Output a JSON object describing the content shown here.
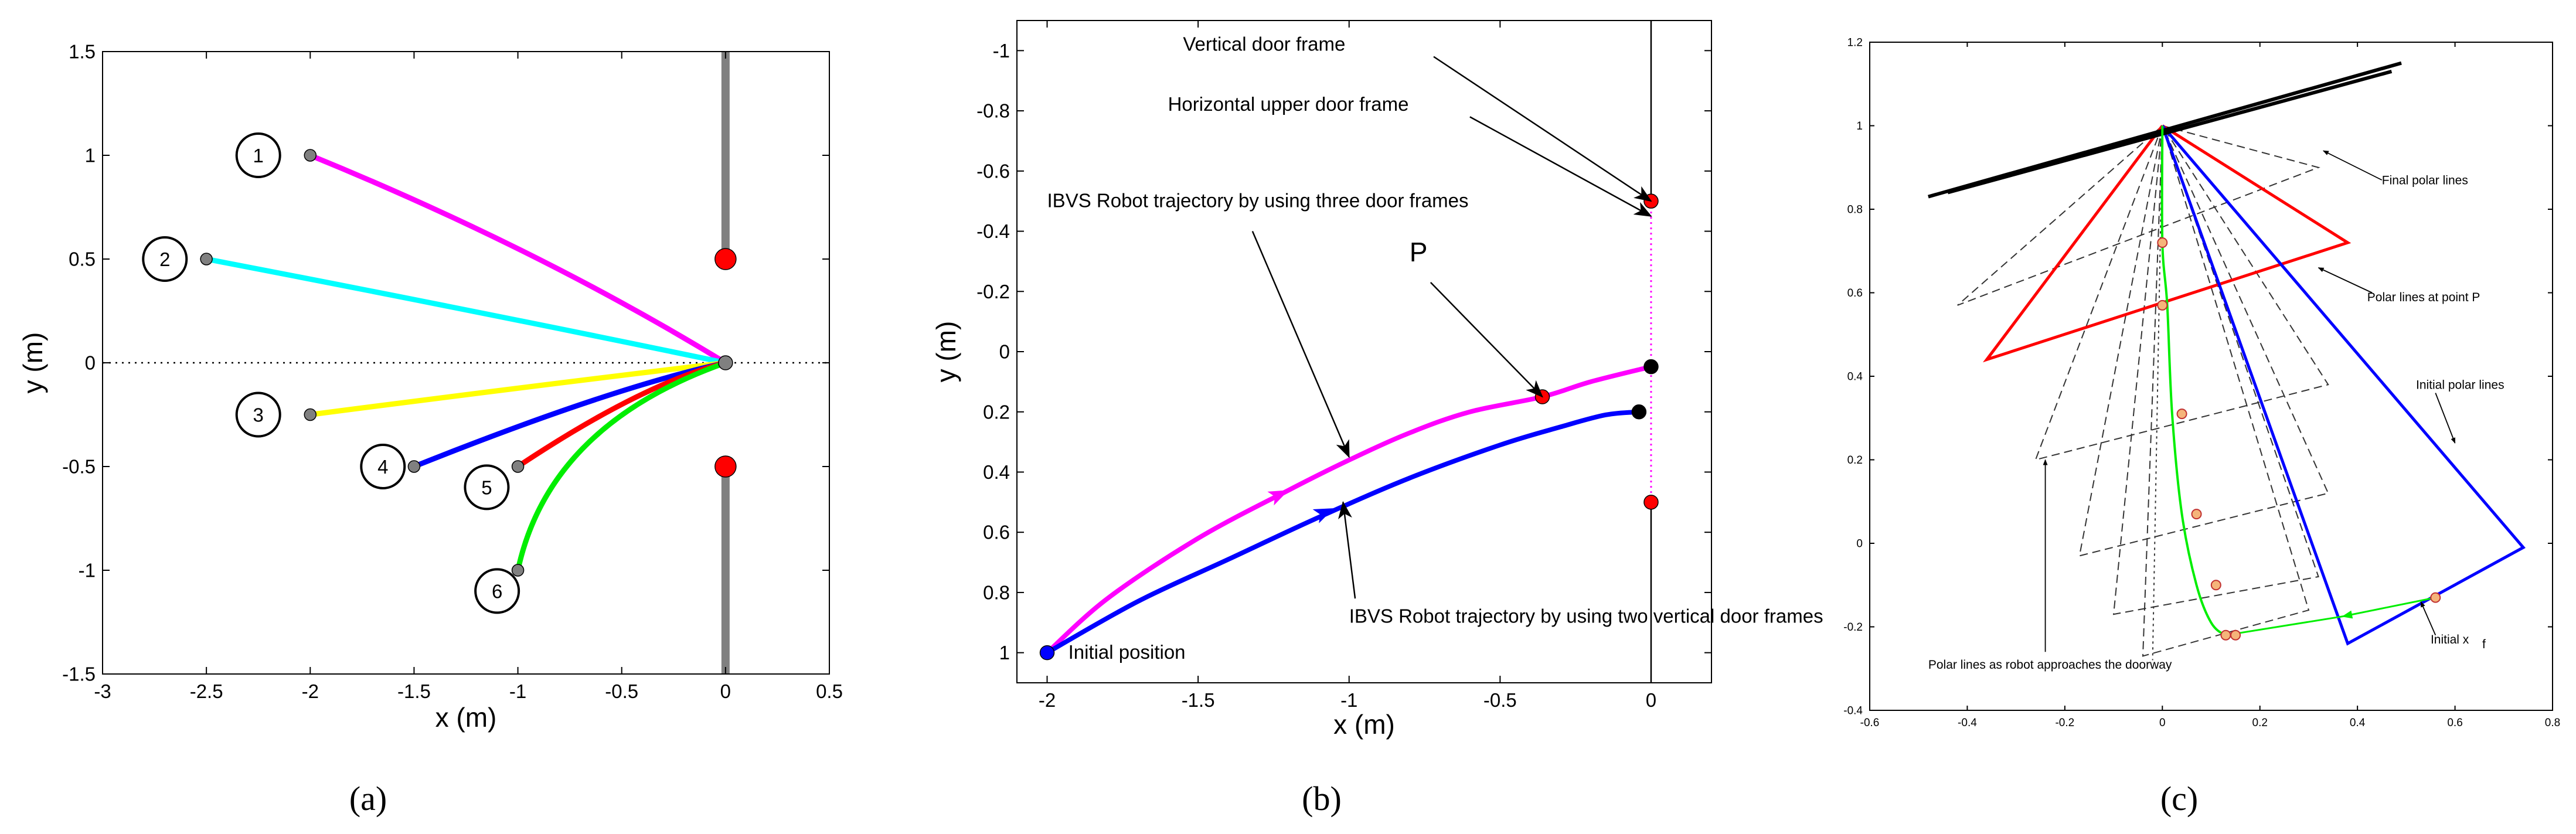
{
  "figure": {
    "panel_labels": [
      "(a)",
      "(b)",
      "(c)"
    ]
  },
  "chart_data": [
    {
      "panel": "a",
      "type": "line",
      "xlabel": "x (m)",
      "ylabel": "y (m)",
      "xlim": [
        -3,
        0.5
      ],
      "ylim": [
        -1.5,
        1.5
      ],
      "x_ticks": [
        -3,
        -2.5,
        -2,
        -1.5,
        -1,
        -0.5,
        0,
        0.5
      ],
      "y_ticks": [
        1.5,
        1,
        0.5,
        0,
        -0.5,
        -1,
        -1.5
      ],
      "x_tick_labels": [
        "-3",
        "-2.5",
        "-2",
        "-1.5",
        "-1",
        "-0.5",
        "0",
        "0.5"
      ],
      "y_tick_labels": [
        "1.5",
        "1",
        "0.5",
        "0",
        "-0.5",
        "-1",
        "-1.5"
      ],
      "grid": false,
      "series": [
        {
          "label": "1",
          "color": "#ff00ff",
          "start": [
            -2,
            1
          ],
          "end": [
            0,
            0
          ]
        },
        {
          "label": "2",
          "color": "#00ffff",
          "start": [
            -2.5,
            0.5
          ],
          "end": [
            0,
            0
          ]
        },
        {
          "label": "3",
          "color": "#ffff00",
          "start": [
            -2,
            -0.25
          ],
          "end": [
            0,
            0
          ]
        },
        {
          "label": "4",
          "color": "#0000ff",
          "start": [
            -1.5,
            -0.5
          ],
          "end": [
            0,
            0
          ]
        },
        {
          "label": "5",
          "color": "#ff0000",
          "start": [
            -1,
            -0.5
          ],
          "end": [
            0,
            0
          ]
        },
        {
          "label": "6",
          "color": "#00ee00",
          "start": [
            -1,
            -1
          ],
          "end": [
            0,
            0
          ]
        }
      ],
      "door_posts": [
        {
          "x": 0,
          "y_range": [
            0.5,
            1.5
          ]
        },
        {
          "x": 0,
          "y_range": [
            -1.5,
            -0.5
          ]
        }
      ],
      "door_points": [
        [
          0,
          0.5
        ],
        [
          0,
          -0.5
        ]
      ],
      "goal_point": [
        0,
        0
      ],
      "reference_line_y": 0,
      "colors": {
        "door_post": "#808080",
        "door_point": "#ff0000"
      }
    },
    {
      "panel": "b",
      "type": "line",
      "xlabel": "x (m)",
      "ylabel": "y (m)",
      "xlim": [
        -2.1,
        0.2
      ],
      "ylim": [
        1.1,
        -1.1
      ],
      "y_axis_inverted": true,
      "x_ticks": [
        -2,
        -1.5,
        -1,
        -0.5,
        0
      ],
      "x_tick_labels": [
        "-2",
        "-1.5",
        "-1",
        "-0.5",
        "0"
      ],
      "y_ticks": [
        -1,
        -0.8,
        -0.6,
        -0.4,
        -0.2,
        0,
        0.2,
        0.4,
        0.6,
        0.8,
        1
      ],
      "y_tick_labels": [
        "-1",
        "-0.8",
        "-0.6",
        "-0.4",
        "-0.2",
        "0",
        "0.2",
        "0.4",
        "0.6",
        "0.8",
        "1"
      ],
      "grid": false,
      "series": [
        {
          "color": "#ff00ff",
          "x": [
            -2,
            -1.8,
            -1.5,
            -1.2,
            -1.0,
            -0.8,
            -0.6,
            -0.36,
            -0.2,
            0
          ],
          "y": [
            1.0,
            0.82,
            0.62,
            0.46,
            0.36,
            0.27,
            0.2,
            0.15,
            0.1,
            0.05
          ]
        },
        {
          "color": "#0000ff",
          "x": [
            -2,
            -1.7,
            -1.4,
            -1.1,
            -0.8,
            -0.5,
            -0.3,
            -0.15,
            -0.04
          ],
          "y": [
            1.0,
            0.83,
            0.69,
            0.55,
            0.42,
            0.31,
            0.25,
            0.21,
            0.2
          ]
        }
      ],
      "points": [
        {
          "x": -2,
          "y": 1.0,
          "color": "#0000ff"
        },
        {
          "x": -0.36,
          "y": 0.15,
          "color": "#ff0000"
        },
        {
          "x": 0,
          "y": 0.05,
          "color": "#000000"
        },
        {
          "x": -0.04,
          "y": 0.2,
          "color": "#000000"
        },
        {
          "x": 0,
          "y": -0.5,
          "color": "#ff0000"
        },
        {
          "x": 0,
          "y": 0.5,
          "color": "#ff0000"
        }
      ],
      "door_line_x": 0,
      "annotations": [
        {
          "text": "Vertical door frame",
          "xy": [
            0,
            -0.5
          ],
          "xytext": [
            -1.55,
            -1.0
          ]
        },
        {
          "text": "Horizontal upper door frame",
          "xy": [
            0,
            -0.45
          ],
          "xytext": [
            -1.6,
            -0.8
          ]
        },
        {
          "text": "IBVS Robot trajectory by using three door frames",
          "xy": [
            -1.0,
            0.35
          ],
          "xytext": [
            -2.0,
            -0.48
          ]
        },
        {
          "text": "P",
          "xy": [
            -0.36,
            0.15
          ],
          "xytext": [
            -0.8,
            -0.3
          ]
        },
        {
          "text": "IBVS Robot trajectory by using two vertical door frames",
          "xy": [
            -1.02,
            0.5
          ],
          "xytext": [
            -1.0,
            0.9
          ]
        },
        {
          "text": "Initial position",
          "xy": [
            -2.0,
            1.0
          ],
          "xytext": [
            -1.93,
            1.02
          ]
        }
      ]
    },
    {
      "panel": "c",
      "type": "line",
      "xlabel": "",
      "ylabel": "",
      "xlim": [
        -0.6,
        0.8
      ],
      "ylim": [
        -0.4,
        1.2
      ],
      "x_ticks": [
        -0.6,
        -0.4,
        -0.2,
        0,
        0.2,
        0.4,
        0.6,
        0.8
      ],
      "x_tick_labels": [
        "-0.6",
        "-0.4",
        "-0.2",
        "0",
        "0.2",
        "0.4",
        "0.6",
        "0.8"
      ],
      "y_ticks": [
        1.2,
        1,
        0.8,
        0.6,
        0.4,
        0.2,
        0,
        -0.2,
        -0.4
      ],
      "y_tick_labels": [
        "1.2",
        "1",
        "0.8",
        "0.6",
        "0.4",
        "0.2",
        "0",
        "-0.2",
        "-0.4"
      ],
      "grid": false,
      "final_polar_lines": [
        [
          [
            -0.48,
            0.83
          ],
          [
            0.49,
            1.15
          ]
        ],
        [
          [
            -0.44,
            0.84
          ],
          [
            0.47,
            1.13
          ]
        ]
      ],
      "polar_lines_at_P": [
        [
          0.0,
          1.0
        ],
        [
          -0.36,
          0.44
        ],
        [
          0.38,
          0.72
        ],
        [
          0.0,
          1.0
        ]
      ],
      "initial_polar_lines": [
        [
          0.0,
          1.0
        ],
        [
          0.74,
          -0.01
        ],
        [
          0.38,
          -0.24
        ],
        [
          0.0,
          1.0
        ]
      ],
      "intermediate_polar_lines": [
        [
          [
            0.0,
            1.0
          ],
          [
            -0.42,
            0.57
          ],
          [
            0.32,
            0.9
          ],
          [
            0.0,
            1.0
          ]
        ],
        [
          [
            0.0,
            1.0
          ],
          [
            -0.26,
            0.2
          ],
          [
            0.34,
            0.38
          ],
          [
            0.0,
            1.0
          ]
        ],
        [
          [
            0.0,
            1.0
          ],
          [
            -0.17,
            -0.03
          ],
          [
            0.34,
            0.12
          ],
          [
            0.0,
            1.0
          ]
        ],
        [
          [
            0.0,
            1.0
          ],
          [
            -0.1,
            -0.17
          ],
          [
            0.32,
            -0.08
          ],
          [
            0.0,
            1.0
          ]
        ],
        [
          [
            0.0,
            1.0
          ],
          [
            -0.04,
            -0.27
          ],
          [
            0.3,
            -0.16
          ],
          [
            0.0,
            1.0
          ]
        ]
      ],
      "trajectory": {
        "color": "#00ee00",
        "x": [
          0.0,
          0.0,
          0.01,
          0.02,
          0.04,
          0.07,
          0.1,
          0.13,
          0.15
        ],
        "y": [
          1.0,
          0.72,
          0.57,
          0.31,
          0.07,
          -0.1,
          -0.19,
          -0.22,
          -0.22
        ]
      },
      "initial_segment": {
        "color": "#00ee00",
        "x": [
          0.13,
          0.56
        ],
        "y": [
          -0.22,
          -0.13
        ]
      },
      "markers": [
        [
          0.0,
          0.72
        ],
        [
          0.0,
          0.57
        ],
        [
          0.04,
          0.31
        ],
        [
          0.07,
          0.07
        ],
        [
          0.11,
          -0.1
        ],
        [
          0.13,
          -0.22
        ],
        [
          0.15,
          -0.22
        ],
        [
          0.56,
          -0.13
        ]
      ],
      "annotations": [
        {
          "text": "Final polar lines",
          "xy": [
            0.33,
            0.94
          ],
          "xytext": [
            0.45,
            0.86
          ]
        },
        {
          "text": "Polar lines at point P",
          "xy": [
            0.32,
            0.66
          ],
          "xytext": [
            0.42,
            0.58
          ]
        },
        {
          "text": "Initial polar lines",
          "xy": [
            0.6,
            0.24
          ],
          "xytext": [
            0.52,
            0.37
          ]
        },
        {
          "text": "Polar lines as robot approaches the doorway",
          "xy": [
            -0.24,
            0.2
          ],
          "xytext": [
            -0.48,
            -0.3
          ]
        },
        {
          "text": "Initial x",
          "subscript": "f",
          "xy": [
            0.53,
            -0.14
          ],
          "xytext": [
            0.55,
            -0.24
          ]
        }
      ]
    }
  ]
}
